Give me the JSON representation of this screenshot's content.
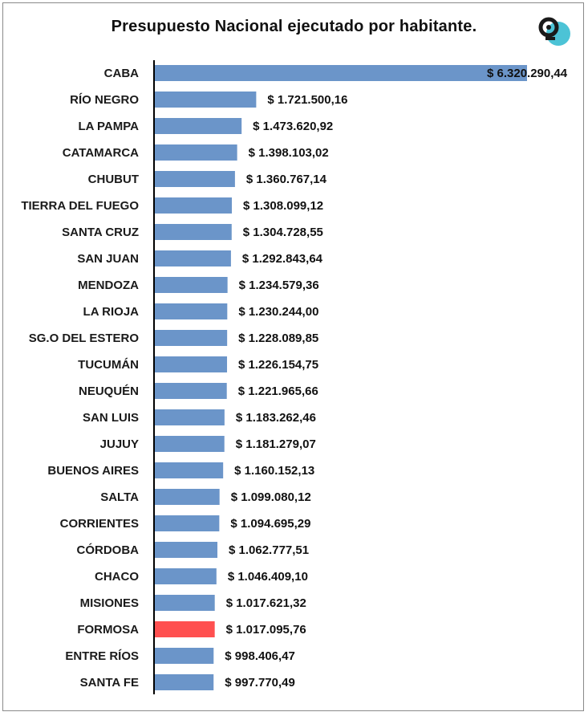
{
  "title": "Presupuesto Nacional ejecutado por habitante.",
  "logo_icon": "brand-logo-icon",
  "colors": {
    "bar": "#6b95c9",
    "highlight": "#ff5050",
    "axis": "#000000",
    "logo_teal": "#4cc3d6",
    "logo_dark": "#1a1a1a"
  },
  "chart_data": {
    "type": "bar",
    "orientation": "horizontal",
    "categories": [
      "CABA",
      "RÍO NEGRO",
      "LA PAMPA",
      "CATAMARCA",
      "CHUBUT",
      "TIERRA DEL FUEGO",
      "SANTA CRUZ",
      "SAN JUAN",
      "MENDOZA",
      "LA RIOJA",
      "SG.O DEL ESTERO",
      "TUCUMÁN",
      "NEUQUÉN",
      "SAN LUIS",
      "JUJUY",
      "BUENOS AIRES",
      "SALTA",
      "CORRIENTES",
      "CÓRDOBA",
      "CHACO",
      "MISIONES",
      "FORMOSA",
      "ENTRE RÍOS",
      "SANTA FE"
    ],
    "values": [
      6320290.44,
      1721500.16,
      1473620.92,
      1398103.02,
      1360767.14,
      1308099.12,
      1304728.55,
      1292843.64,
      1234579.36,
      1230244.0,
      1228089.85,
      1226154.75,
      1221965.66,
      1183262.46,
      1181279.07,
      1160152.13,
      1099080.12,
      1094695.29,
      1062777.51,
      1046409.1,
      1017621.32,
      1017095.76,
      998406.47,
      997770.49
    ],
    "labels": [
      "$ 6.320.290,44",
      "$ 1.721.500,16",
      "$ 1.473.620,92",
      "$ 1.398.103,02",
      "$ 1.360.767,14",
      "$ 1.308.099,12",
      "$ 1.304.728,55",
      "$ 1.292.843,64",
      "$ 1.234.579,36",
      "$ 1.230.244,00",
      "$ 1.228.089,85",
      "$ 1.226.154,75",
      "$ 1.221.965,66",
      "$ 1.183.262,46",
      "$ 1.181.279,07",
      "$ 1.160.152,13",
      "$ 1.099.080,12",
      "$ 1.094.695,29",
      "$ 1.062.777,51",
      "$ 1.046.409,10",
      "$ 1.017.621,32",
      "$ 1.017.095,76",
      "$ 998.406,47",
      "$ 997.770,49"
    ],
    "highlight": "FORMOSA",
    "xlim": [
      0,
      6320290.44
    ],
    "grid": false,
    "legend": "none"
  }
}
